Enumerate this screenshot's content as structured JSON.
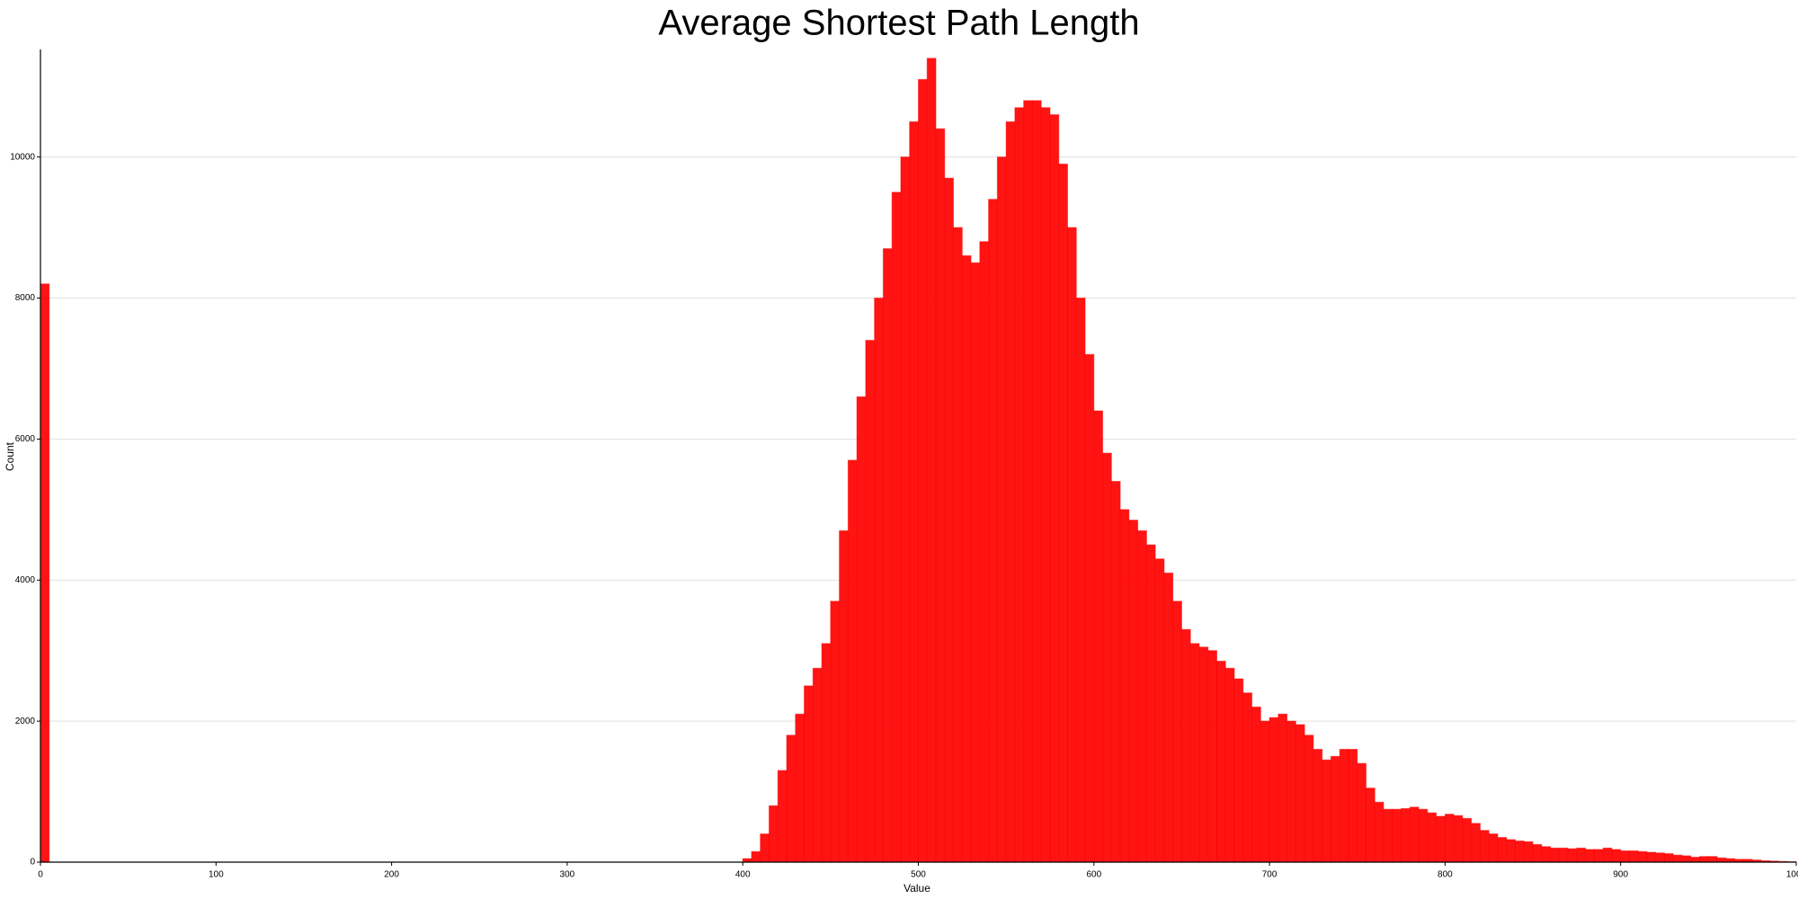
{
  "chart_data": {
    "type": "histogram",
    "title": "Average Shortest Path Length",
    "xlabel": "Value",
    "ylabel": "Count",
    "color": "#ff0000",
    "bins": [
      0,
      5,
      10,
      15,
      20,
      25,
      30,
      35,
      40,
      45,
      50,
      55,
      60,
      65,
      70,
      75,
      80,
      85,
      90,
      95,
      100,
      105,
      110,
      115,
      120,
      125,
      130,
      135,
      140,
      145,
      150,
      155,
      160,
      165,
      170,
      175,
      180,
      185,
      190,
      195,
      200,
      205,
      210,
      215,
      220,
      225,
      230,
      235,
      240,
      245,
      250,
      255,
      260,
      265,
      270,
      275,
      280,
      285,
      290,
      295,
      300,
      305,
      310,
      315,
      320,
      325,
      330,
      335,
      340,
      345,
      350,
      355,
      360,
      365,
      370,
      375,
      380,
      385,
      390,
      395,
      400,
      405,
      410,
      415,
      420,
      425,
      430,
      435,
      440,
      445,
      450,
      455,
      460,
      465,
      470,
      475,
      480,
      485,
      490,
      495,
      500,
      505,
      510,
      515,
      520,
      525,
      530,
      535,
      540,
      545,
      550,
      555,
      560,
      565,
      570,
      575,
      580,
      585,
      590,
      595,
      600,
      605,
      610,
      615,
      620,
      625,
      630,
      635,
      640,
      645,
      650,
      655,
      660,
      665,
      670,
      675,
      680,
      685,
      690,
      695,
      700,
      705,
      710,
      715,
      720,
      725,
      730,
      735,
      740,
      745,
      750,
      755,
      760,
      765,
      770,
      775,
      780,
      785,
      790,
      795,
      800,
      805,
      810,
      815,
      820,
      825,
      830,
      835,
      840,
      845,
      850,
      855,
      860,
      865,
      870,
      875,
      880,
      885,
      890,
      895,
      900,
      905,
      910,
      915,
      920,
      925,
      930,
      935,
      940,
      945,
      950,
      955,
      960,
      965,
      970,
      975,
      980,
      985,
      990,
      995,
      1000
    ],
    "values": [
      8200,
      0,
      0,
      0,
      0,
      0,
      0,
      0,
      0,
      0,
      0,
      0,
      0,
      0,
      0,
      0,
      0,
      0,
      0,
      0,
      0,
      0,
      0,
      0,
      0,
      0,
      0,
      0,
      0,
      0,
      0,
      0,
      0,
      0,
      0,
      0,
      0,
      0,
      0,
      0,
      0,
      0,
      0,
      0,
      0,
      0,
      0,
      0,
      0,
      0,
      0,
      0,
      0,
      0,
      0,
      0,
      0,
      0,
      0,
      0,
      0,
      0,
      0,
      0,
      0,
      0,
      0,
      0,
      0,
      0,
      0,
      0,
      0,
      0,
      0,
      0,
      0,
      0,
      0,
      0,
      50,
      150,
      400,
      800,
      1300,
      1800,
      2100,
      2500,
      2750,
      3100,
      3700,
      4700,
      5700,
      6600,
      7400,
      8000,
      8700,
      9500,
      10000,
      10500,
      11100,
      11400,
      10400,
      9700,
      9000,
      8600,
      8500,
      8800,
      9400,
      10000,
      10500,
      10700,
      10800,
      10800,
      10700,
      10600,
      9900,
      9000,
      8000,
      7200,
      6400,
      5800,
      5400,
      5000,
      4850,
      4700,
      4500,
      4300,
      4100,
      3700,
      3300,
      3100,
      3050,
      3000,
      2850,
      2750,
      2600,
      2400,
      2200,
      2000,
      2050,
      2100,
      2000,
      1950,
      1800,
      1600,
      1450,
      1500,
      1600,
      1600,
      1400,
      1050,
      850,
      750,
      750,
      760,
      780,
      750,
      700,
      650,
      680,
      660,
      620,
      550,
      450,
      400,
      350,
      320,
      300,
      290,
      250,
      220,
      200,
      200,
      190,
      200,
      180,
      180,
      200,
      180,
      160,
      160,
      150,
      140,
      130,
      120,
      100,
      90,
      70,
      80,
      80,
      60,
      50,
      40,
      40,
      30,
      20,
      15,
      10,
      5
    ],
    "xlim": [
      0,
      1000
    ],
    "xticks": [
      0,
      100,
      200,
      300,
      400,
      500,
      600,
      700,
      800,
      900,
      1000
    ],
    "ylim": [
      0,
      11500
    ],
    "yticks": [
      0,
      2000,
      4000,
      6000,
      8000,
      10000
    ],
    "grid": true
  }
}
